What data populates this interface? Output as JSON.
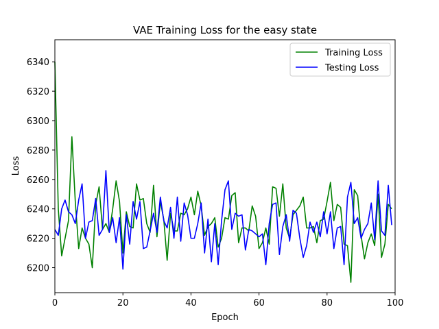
{
  "chart_data": {
    "type": "line",
    "title": "VAE Training Loss for the easy state",
    "xlabel": "Epoch",
    "ylabel": "Loss",
    "xlim": [
      0,
      100
    ],
    "ylim": [
      6183,
      6355
    ],
    "xticks": [
      0,
      20,
      40,
      60,
      80,
      100
    ],
    "yticks": [
      6200,
      6220,
      6240,
      6260,
      6280,
      6300,
      6320,
      6340
    ],
    "grid": false,
    "legend_position": "top-right",
    "series": [
      {
        "name": "Training Loss",
        "color": "#008000",
        "x": [
          0,
          1,
          2,
          3,
          4,
          5,
          6,
          7,
          8,
          9,
          10,
          11,
          12,
          13,
          14,
          15,
          16,
          17,
          18,
          19,
          20,
          21,
          22,
          23,
          24,
          25,
          26,
          27,
          28,
          29,
          30,
          31,
          32,
          33,
          34,
          35,
          36,
          37,
          38,
          39,
          40,
          41,
          42,
          43,
          44,
          45,
          46,
          47,
          48,
          49,
          50,
          51,
          52,
          53,
          54,
          55,
          56,
          57,
          58,
          59,
          60,
          61,
          62,
          63,
          64,
          65,
          66,
          67,
          68,
          69,
          70,
          71,
          72,
          73,
          74,
          75,
          76,
          77,
          78,
          79,
          80,
          81,
          82,
          83,
          84,
          85,
          86,
          87,
          88,
          89,
          90,
          91,
          92,
          93,
          94,
          95,
          96,
          97,
          98,
          99
        ],
        "values": [
          6340,
          6240,
          6208,
          6220,
          6232,
          6289,
          6245,
          6213,
          6227,
          6220,
          6216,
          6200,
          6243,
          6255,
          6226,
          6230,
          6224,
          6240,
          6259,
          6245,
          6210,
          6238,
          6228,
          6227,
          6257,
          6246,
          6247,
          6230,
          6224,
          6256,
          6221,
          6245,
          6233,
          6205,
          6237,
          6225,
          6225,
          6237,
          6236,
          6240,
          6248,
          6236,
          6252,
          6242,
          6222,
          6228,
          6230,
          6234,
          6214,
          6220,
          6234,
          6233,
          6249,
          6251,
          6217,
          6227,
          6227,
          6225,
          6242,
          6235,
          6213,
          6217,
          6227,
          6216,
          6255,
          6254,
          6235,
          6257,
          6227,
          6220,
          6236,
          6239,
          6242,
          6248,
          6227,
          6227,
          6228,
          6217,
          6232,
          6233,
          6245,
          6258,
          6232,
          6243,
          6241,
          6216,
          6215,
          6190,
          6253,
          6249,
          6222,
          6206,
          6217,
          6223,
          6215,
          6250,
          6207,
          6216,
          6243,
          6240
        ]
      },
      {
        "name": "Testing Loss",
        "color": "#0000ff",
        "x": [
          0,
          1,
          2,
          3,
          4,
          5,
          6,
          7,
          8,
          9,
          10,
          11,
          12,
          13,
          14,
          15,
          16,
          17,
          18,
          19,
          20,
          21,
          22,
          23,
          24,
          25,
          26,
          27,
          28,
          29,
          30,
          31,
          32,
          33,
          34,
          35,
          36,
          37,
          38,
          39,
          40,
          41,
          42,
          43,
          44,
          45,
          46,
          47,
          48,
          49,
          50,
          51,
          52,
          53,
          54,
          55,
          56,
          57,
          58,
          59,
          60,
          61,
          62,
          63,
          64,
          65,
          66,
          67,
          68,
          69,
          70,
          71,
          72,
          73,
          74,
          75,
          76,
          77,
          78,
          79,
          80,
          81,
          82,
          83,
          84,
          85,
          86,
          87,
          88,
          89,
          90,
          91,
          92,
          93,
          94,
          95,
          96,
          97,
          98,
          99
        ],
        "values": [
          6226,
          6222,
          6240,
          6246,
          6238,
          6236,
          6230,
          6246,
          6257,
          6220,
          6231,
          6232,
          6247,
          6222,
          6226,
          6266,
          6224,
          6234,
          6217,
          6234,
          6199,
          6236,
          6216,
          6245,
          6233,
          6245,
          6213,
          6214,
          6225,
          6237,
          6224,
          6248,
          6232,
          6227,
          6241,
          6220,
          6248,
          6218,
          6244,
          6236,
          6220,
          6220,
          6230,
          6244,
          6210,
          6233,
          6204,
          6230,
          6202,
          6232,
          6253,
          6259,
          6226,
          6237,
          6235,
          6236,
          6212,
          6226,
          6225,
          6223,
          6221,
          6223,
          6202,
          6230,
          6243,
          6244,
          6209,
          6228,
          6236,
          6218,
          6239,
          6237,
          6220,
          6207,
          6215,
          6231,
          6224,
          6231,
          6221,
          6238,
          6223,
          6238,
          6213,
          6227,
          6228,
          6202,
          6248,
          6258,
          6230,
          6234,
          6220,
          6226,
          6230,
          6244,
          6219,
          6259,
          6225,
          6222,
          6256,
          6229
        ]
      }
    ]
  }
}
